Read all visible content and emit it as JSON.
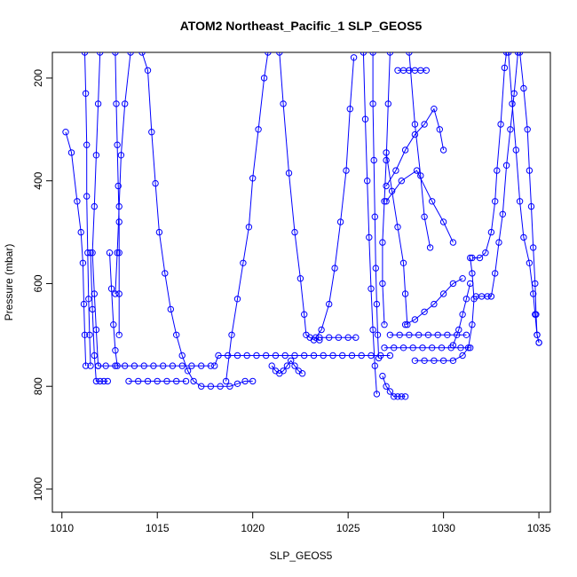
{
  "chart_data": {
    "type": "line",
    "title": "ATOM2 Northeast_Pacific_1 SLP_GEOS5",
    "xlabel": "SLP_GEOS5",
    "ylabel": "Pressure (mbar)",
    "xlim": [
      1009.5,
      1035.6
    ],
    "ylim": [
      1045,
      150
    ],
    "y_inverted": true,
    "xticks": [
      1010,
      1015,
      1020,
      1025,
      1030,
      1035
    ],
    "yticks": [
      200,
      400,
      600,
      800,
      1000
    ],
    "grid": false,
    "legend": "none",
    "color": "#0000ff",
    "series": [
      {
        "points": [
          [
            1010.2,
            305
          ],
          [
            1010.5,
            345
          ],
          [
            1010.8,
            440
          ],
          [
            1011.0,
            500
          ],
          [
            1011.1,
            560
          ],
          [
            1011.15,
            640
          ],
          [
            1011.2,
            700
          ],
          [
            1011.25,
            760
          ]
        ]
      },
      {
        "points": [
          [
            1011.2,
            150
          ],
          [
            1011.25,
            230
          ],
          [
            1011.3,
            330
          ],
          [
            1011.3,
            430
          ],
          [
            1011.35,
            540
          ],
          [
            1011.4,
            630
          ],
          [
            1011.45,
            700
          ],
          [
            1011.5,
            760
          ]
        ]
      },
      {
        "points": [
          [
            1011.5,
            540
          ],
          [
            1011.6,
            650
          ],
          [
            1011.7,
            740
          ],
          [
            1011.8,
            790
          ],
          [
            1012.0,
            790
          ],
          [
            1012.2,
            790
          ],
          [
            1012.4,
            790
          ]
        ]
      },
      {
        "points": [
          [
            1012.0,
            150
          ],
          [
            1011.9,
            250
          ],
          [
            1011.8,
            350
          ],
          [
            1011.7,
            450
          ],
          [
            1011.6,
            540
          ],
          [
            1011.7,
            620
          ],
          [
            1011.8,
            690
          ],
          [
            1011.9,
            760
          ]
        ]
      },
      {
        "points": [
          [
            1012.5,
            540
          ],
          [
            1012.6,
            610
          ],
          [
            1012.7,
            680
          ],
          [
            1012.8,
            730
          ],
          [
            1012.9,
            760
          ]
        ]
      },
      {
        "points": [
          [
            1012.8,
            150
          ],
          [
            1012.85,
            250
          ],
          [
            1012.9,
            330
          ],
          [
            1012.95,
            410
          ],
          [
            1013.0,
            480
          ],
          [
            1013.0,
            540
          ],
          [
            1013.0,
            620
          ],
          [
            1013.0,
            700
          ]
        ]
      },
      {
        "points": [
          [
            1013.6,
            150
          ],
          [
            1013.3,
            250
          ],
          [
            1013.1,
            350
          ],
          [
            1013.0,
            450
          ],
          [
            1012.9,
            540
          ],
          [
            1012.8,
            620
          ]
        ]
      },
      {
        "points": [
          [
            1011.9,
            760
          ],
          [
            1012.3,
            760
          ],
          [
            1012.8,
            760
          ],
          [
            1013.3,
            760
          ],
          [
            1013.8,
            760
          ],
          [
            1014.3,
            760
          ],
          [
            1014.8,
            760
          ],
          [
            1015.3,
            760
          ],
          [
            1015.8,
            760
          ],
          [
            1016.3,
            760
          ],
          [
            1016.8,
            760
          ],
          [
            1017.3,
            760
          ],
          [
            1017.8,
            760
          ]
        ]
      },
      {
        "points": [
          [
            1014.2,
            150
          ],
          [
            1014.5,
            185
          ],
          [
            1014.7,
            305
          ],
          [
            1014.9,
            405
          ],
          [
            1015.1,
            500
          ],
          [
            1015.4,
            580
          ],
          [
            1015.7,
            650
          ],
          [
            1016.0,
            700
          ],
          [
            1016.3,
            740
          ],
          [
            1016.6,
            770
          ],
          [
            1016.9,
            790
          ],
          [
            1017.3,
            800
          ],
          [
            1017.8,
            800
          ],
          [
            1018.3,
            800
          ],
          [
            1018.8,
            800
          ],
          [
            1019.2,
            795
          ],
          [
            1019.6,
            790
          ],
          [
            1020.0,
            790
          ]
        ]
      },
      {
        "points": [
          [
            1013.5,
            790
          ],
          [
            1014.0,
            790
          ],
          [
            1014.5,
            790
          ],
          [
            1015.0,
            790
          ],
          [
            1015.5,
            790
          ],
          [
            1016.0,
            790
          ],
          [
            1016.5,
            790
          ]
        ]
      },
      {
        "points": [
          [
            1018.0,
            760
          ],
          [
            1018.2,
            740
          ],
          [
            1018.7,
            740
          ],
          [
            1019.2,
            740
          ],
          [
            1019.7,
            740
          ],
          [
            1020.2,
            740
          ],
          [
            1020.7,
            740
          ],
          [
            1021.2,
            740
          ],
          [
            1021.7,
            740
          ],
          [
            1022.2,
            740
          ],
          [
            1022.7,
            740
          ],
          [
            1023.2,
            740
          ],
          [
            1023.7,
            740
          ],
          [
            1024.2,
            740
          ],
          [
            1024.7,
            740
          ],
          [
            1025.2,
            740
          ],
          [
            1025.7,
            740
          ],
          [
            1026.2,
            740
          ],
          [
            1026.7,
            740
          ],
          [
            1027.2,
            740
          ]
        ]
      },
      {
        "points": [
          [
            1018.6,
            790
          ],
          [
            1018.9,
            700
          ],
          [
            1019.2,
            630
          ],
          [
            1019.5,
            560
          ],
          [
            1019.8,
            490
          ],
          [
            1020.0,
            395
          ],
          [
            1020.3,
            300
          ],
          [
            1020.6,
            200
          ],
          [
            1020.8,
            150
          ]
        ]
      },
      {
        "points": [
          [
            1021.4,
            150
          ],
          [
            1021.6,
            250
          ],
          [
            1021.9,
            385
          ],
          [
            1022.2,
            500
          ],
          [
            1022.5,
            590
          ],
          [
            1022.7,
            660
          ],
          [
            1022.8,
            700
          ],
          [
            1023.0,
            705
          ],
          [
            1023.3,
            705
          ],
          [
            1023.5,
            710
          ]
        ]
      },
      {
        "points": [
          [
            1021.0,
            760
          ],
          [
            1021.2,
            770
          ],
          [
            1021.4,
            775
          ],
          [
            1021.6,
            770
          ],
          [
            1021.8,
            760
          ],
          [
            1022.0,
            750
          ],
          [
            1022.2,
            760
          ],
          [
            1022.4,
            770
          ],
          [
            1022.6,
            775
          ]
        ]
      },
      {
        "points": [
          [
            1023.2,
            710
          ],
          [
            1023.6,
            690
          ],
          [
            1024.0,
            640
          ],
          [
            1024.3,
            570
          ],
          [
            1024.6,
            480
          ],
          [
            1024.9,
            380
          ],
          [
            1025.1,
            260
          ],
          [
            1025.3,
            160
          ]
        ]
      },
      {
        "points": [
          [
            1023.5,
            705
          ],
          [
            1024.0,
            705
          ],
          [
            1024.5,
            705
          ],
          [
            1025.0,
            705
          ],
          [
            1025.4,
            705
          ]
        ]
      },
      {
        "points": [
          [
            1025.8,
            150
          ],
          [
            1025.9,
            280
          ],
          [
            1026.0,
            400
          ],
          [
            1026.1,
            510
          ],
          [
            1026.2,
            610
          ],
          [
            1026.3,
            690
          ],
          [
            1026.4,
            760
          ],
          [
            1026.5,
            815
          ]
        ]
      },
      {
        "points": [
          [
            1026.3,
            150
          ],
          [
            1026.3,
            250
          ],
          [
            1026.35,
            360
          ],
          [
            1026.4,
            470
          ],
          [
            1026.45,
            570
          ],
          [
            1026.5,
            640
          ],
          [
            1026.55,
            700
          ],
          [
            1026.6,
            745
          ]
        ]
      },
      {
        "points": [
          [
            1027.2,
            150
          ],
          [
            1027.1,
            250
          ],
          [
            1027.0,
            360
          ],
          [
            1026.9,
            440
          ],
          [
            1026.8,
            520
          ],
          [
            1026.8,
            600
          ],
          [
            1026.9,
            680
          ]
        ]
      },
      {
        "points": [
          [
            1026.8,
            780
          ],
          [
            1027.0,
            800
          ],
          [
            1027.2,
            810
          ],
          [
            1027.4,
            820
          ],
          [
            1027.6,
            820
          ],
          [
            1027.8,
            820
          ],
          [
            1028.0,
            820
          ]
        ]
      },
      {
        "points": [
          [
            1027.0,
            345
          ],
          [
            1027.3,
            420
          ],
          [
            1027.6,
            490
          ],
          [
            1027.9,
            560
          ],
          [
            1028.0,
            620
          ],
          [
            1028.1,
            680
          ]
        ]
      },
      {
        "points": [
          [
            1027.6,
            185
          ],
          [
            1027.9,
            185
          ],
          [
            1028.2,
            185
          ],
          [
            1028.5,
            185
          ],
          [
            1028.8,
            185
          ],
          [
            1029.1,
            185
          ]
        ]
      },
      {
        "points": [
          [
            1028.2,
            150
          ],
          [
            1028.5,
            290
          ],
          [
            1028.8,
            390
          ],
          [
            1029.0,
            470
          ],
          [
            1029.3,
            530
          ]
        ]
      },
      {
        "points": [
          [
            1027.0,
            410
          ],
          [
            1027.5,
            380
          ],
          [
            1028.0,
            340
          ],
          [
            1028.5,
            310
          ],
          [
            1029.0,
            290
          ],
          [
            1029.5,
            260
          ],
          [
            1029.8,
            300
          ],
          [
            1030.0,
            340
          ]
        ]
      },
      {
        "points": [
          [
            1027.0,
            440
          ],
          [
            1027.8,
            400
          ],
          [
            1028.6,
            380
          ],
          [
            1029.4,
            440
          ],
          [
            1030.0,
            480
          ],
          [
            1030.5,
            520
          ]
        ]
      },
      {
        "points": [
          [
            1028.0,
            680
          ],
          [
            1028.5,
            670
          ],
          [
            1029.0,
            655
          ],
          [
            1029.5,
            640
          ],
          [
            1030.0,
            620
          ],
          [
            1030.5,
            600
          ],
          [
            1031.0,
            590
          ]
        ]
      },
      {
        "points": [
          [
            1027.2,
            700
          ],
          [
            1027.7,
            700
          ],
          [
            1028.2,
            700
          ],
          [
            1028.7,
            700
          ],
          [
            1029.2,
            700
          ],
          [
            1029.7,
            700
          ],
          [
            1030.2,
            700
          ],
          [
            1030.7,
            700
          ],
          [
            1031.2,
            700
          ]
        ]
      },
      {
        "points": [
          [
            1026.9,
            725
          ],
          [
            1027.4,
            725
          ],
          [
            1027.9,
            725
          ],
          [
            1028.4,
            725
          ],
          [
            1028.9,
            725
          ],
          [
            1029.4,
            725
          ],
          [
            1029.9,
            725
          ],
          [
            1030.4,
            725
          ],
          [
            1030.9,
            725
          ],
          [
            1031.4,
            725
          ]
        ]
      },
      {
        "points": [
          [
            1028.5,
            750
          ],
          [
            1029.0,
            750
          ],
          [
            1029.5,
            750
          ],
          [
            1030.0,
            750
          ],
          [
            1030.5,
            750
          ],
          [
            1031.0,
            740
          ],
          [
            1031.3,
            725
          ],
          [
            1031.5,
            680
          ],
          [
            1031.6,
            630
          ],
          [
            1031.5,
            580
          ],
          [
            1031.4,
            550
          ]
        ]
      },
      {
        "points": [
          [
            1030.5,
            720
          ],
          [
            1030.8,
            690
          ],
          [
            1031.0,
            660
          ],
          [
            1031.2,
            630
          ],
          [
            1031.4,
            600
          ]
        ]
      },
      {
        "points": [
          [
            1031.7,
            625
          ],
          [
            1032.0,
            625
          ],
          [
            1032.3,
            625
          ],
          [
            1032.5,
            625
          ],
          [
            1032.7,
            580
          ],
          [
            1032.9,
            520
          ],
          [
            1033.1,
            465
          ],
          [
            1033.3,
            370
          ],
          [
            1033.5,
            300
          ],
          [
            1033.7,
            230
          ],
          [
            1033.9,
            150
          ]
        ]
      },
      {
        "points": [
          [
            1031.5,
            550
          ],
          [
            1031.9,
            550
          ],
          [
            1032.2,
            540
          ],
          [
            1032.5,
            500
          ],
          [
            1032.7,
            440
          ],
          [
            1032.8,
            380
          ],
          [
            1033.0,
            290
          ],
          [
            1033.2,
            180
          ],
          [
            1033.3,
            150
          ]
        ]
      },
      {
        "points": [
          [
            1033.4,
            150
          ],
          [
            1033.6,
            250
          ],
          [
            1033.8,
            340
          ],
          [
            1034.0,
            440
          ],
          [
            1034.2,
            510
          ],
          [
            1034.5,
            560
          ],
          [
            1034.7,
            620
          ],
          [
            1034.8,
            660
          ],
          [
            1034.9,
            700
          ],
          [
            1035.0,
            715
          ]
        ]
      },
      {
        "points": [
          [
            1034.0,
            150
          ],
          [
            1034.2,
            220
          ],
          [
            1034.4,
            300
          ],
          [
            1034.5,
            380
          ],
          [
            1034.6,
            450
          ],
          [
            1034.7,
            530
          ],
          [
            1034.8,
            600
          ],
          [
            1034.85,
            660
          ],
          [
            1034.9,
            700
          ],
          [
            1035.0,
            715
          ]
        ]
      }
    ]
  }
}
